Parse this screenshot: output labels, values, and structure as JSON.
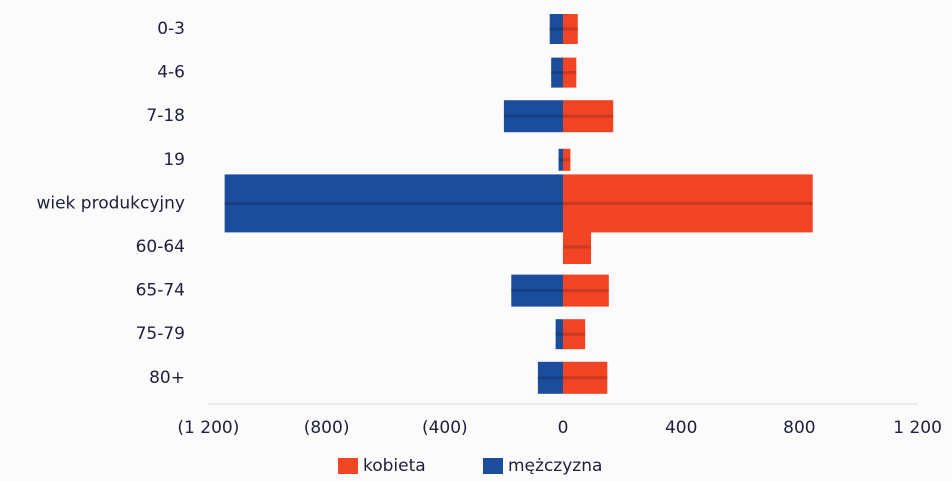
{
  "chart_data": {
    "type": "bar",
    "orientation": "horizontal",
    "layout": "diverging",
    "categories": [
      "0-3",
      "4-6",
      "7-18",
      "19",
      "wiek produkcyjny",
      "60-64",
      "65-74",
      "75-79",
      "80+"
    ],
    "series": [
      {
        "name": "kobieta",
        "color": "#f04424",
        "values": [
          50,
          45,
          170,
          25,
          845,
          95,
          155,
          75,
          150
        ]
      },
      {
        "name": "mężczyzna",
        "color": "#1c4c9c",
        "values": [
          -45,
          -40,
          -200,
          -15,
          -1145,
          0,
          -175,
          -25,
          -85
        ]
      }
    ],
    "xlim": [
      -1200,
      1200
    ],
    "xticks": [
      {
        "value": -1200,
        "label": "(1 200)"
      },
      {
        "value": -800,
        "label": "(800)"
      },
      {
        "value": -400,
        "label": "(400)"
      },
      {
        "value": 0,
        "label": "0"
      },
      {
        "value": 400,
        "label": "400"
      },
      {
        "value": 800,
        "label": "800"
      },
      {
        "value": 1200,
        "label": "1 200"
      }
    ],
    "grid": false,
    "legend": "bottom-center",
    "title": "",
    "xlabel": "",
    "ylabel": ""
  }
}
